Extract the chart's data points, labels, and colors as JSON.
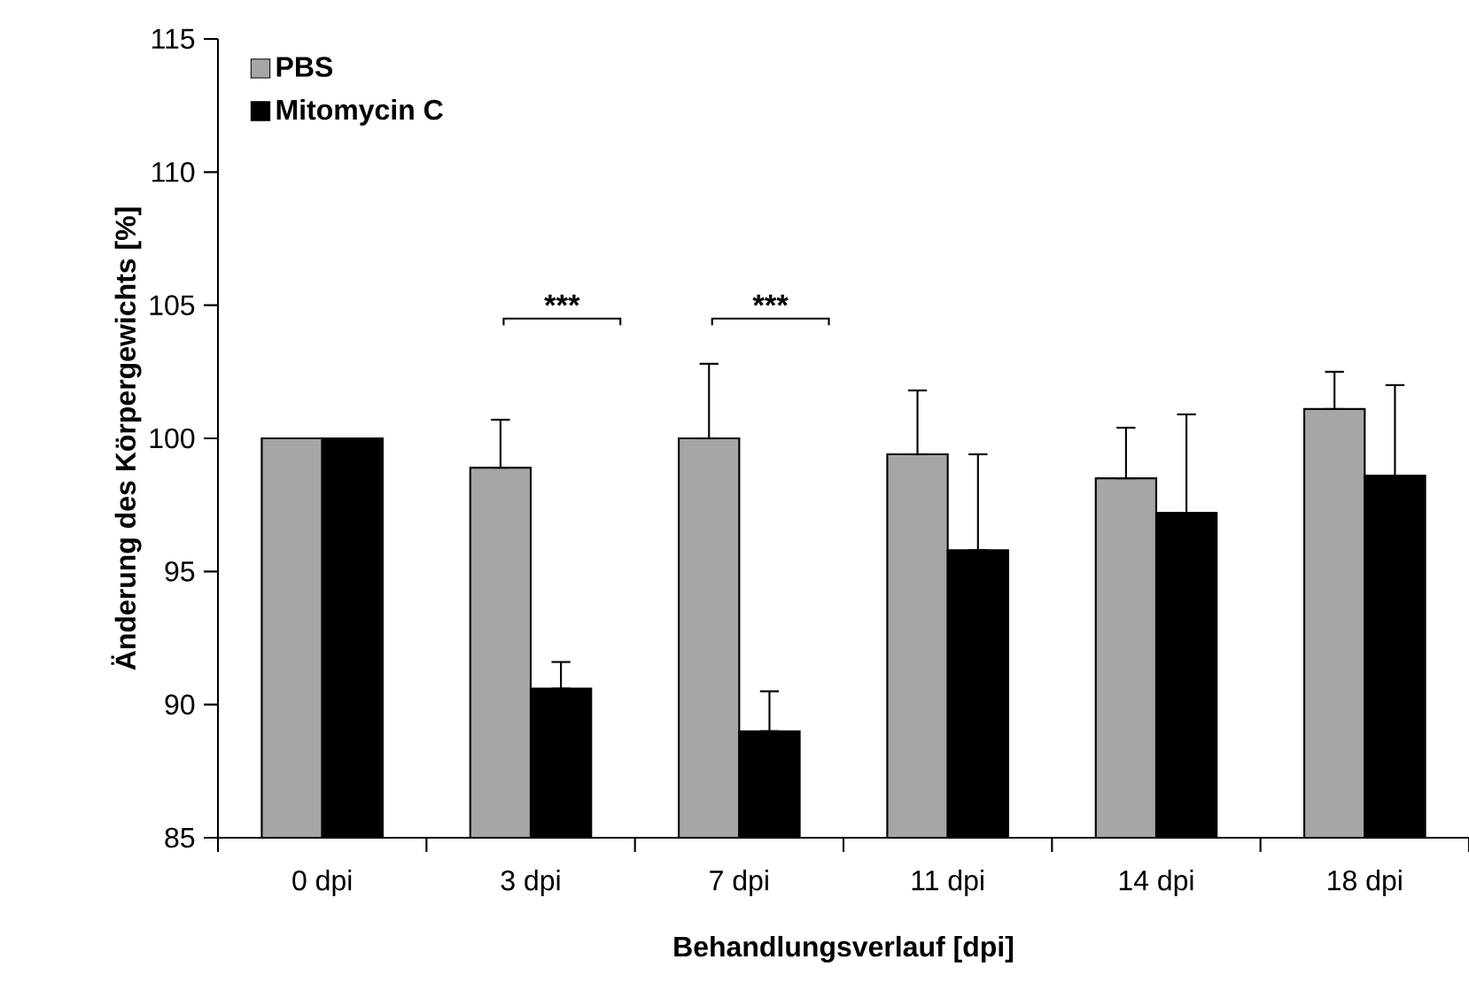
{
  "chart_data": {
    "type": "bar",
    "xlabel": "Behandlungsverlauf [dpi]",
    "ylabel": "Änderung des Körpergewichts [%]",
    "categories": [
      "0 dpi",
      "3 dpi",
      "7 dpi",
      "11 dpi",
      "14 dpi",
      "18 dpi"
    ],
    "series": [
      {
        "name": "PBS",
        "color": "#a6a6a6",
        "values": [
          100,
          98.9,
          100.0,
          99.4,
          98.5,
          101.1
        ],
        "errors": [
          null,
          [
            98.9,
            100.7
          ],
          [
            100.0,
            102.8
          ],
          [
            99.4,
            101.8
          ],
          [
            98.5,
            100.4
          ],
          [
            101.1,
            102.5
          ]
        ]
      },
      {
        "name": "Mitomycin C",
        "color": "#000000",
        "values": [
          100,
          90.6,
          89.0,
          95.8,
          97.2,
          98.6
        ],
        "errors": [
          null,
          [
            90.6,
            91.6
          ],
          [
            89.0,
            90.5
          ],
          [
            95.8,
            99.4
          ],
          [
            97.2,
            100.9
          ],
          [
            98.6,
            102.0
          ]
        ]
      }
    ],
    "ylim": [
      85,
      115
    ],
    "yticks": [
      85,
      90,
      95,
      100,
      105,
      110,
      115
    ],
    "grid": false,
    "legend": "top left",
    "annotations": [
      "***",
      "***"
    ]
  }
}
